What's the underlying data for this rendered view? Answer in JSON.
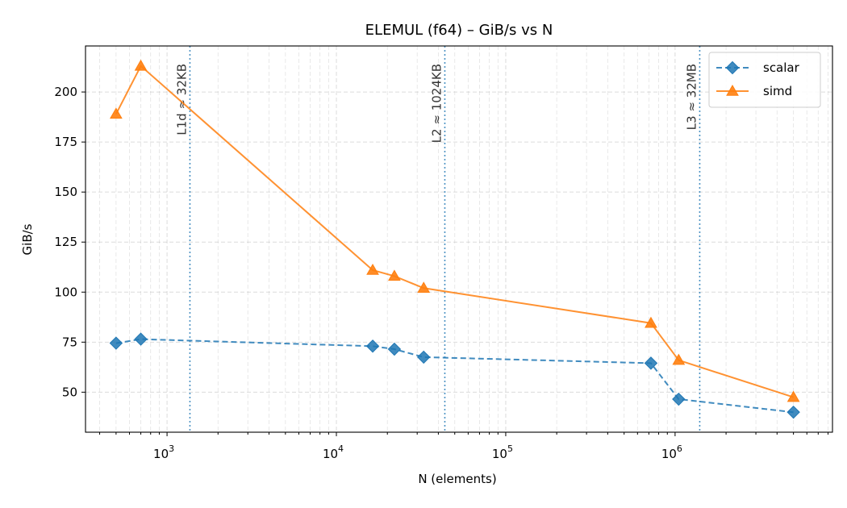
{
  "chart_data": {
    "type": "line",
    "title": "ELEMUL (f64) – GiB/s vs N",
    "xlabel": "N (elements)",
    "ylabel": "GiB/s",
    "xscale": "log",
    "xlim": [
      330,
      8500000
    ],
    "ylim": [
      30,
      223
    ],
    "grid": true,
    "legend_position": "top-right",
    "yticks": [
      50,
      75,
      100,
      125,
      150,
      175,
      200
    ],
    "xticks": [
      {
        "value": 1000,
        "base": "10",
        "exp": "3"
      },
      {
        "value": 10000,
        "base": "10",
        "exp": "4"
      },
      {
        "value": 100000,
        "base": "10",
        "exp": "5"
      },
      {
        "value": 1000000,
        "base": "10",
        "exp": "6"
      }
    ],
    "series": [
      {
        "name": "scalar",
        "color": "#1f77b4",
        "linestyle": "dashed",
        "marker": "diamond",
        "points": [
          [
            500,
            74.5
          ],
          [
            700,
            76.5
          ],
          [
            16384,
            73
          ],
          [
            22000,
            71.5
          ],
          [
            32768,
            67.5
          ],
          [
            720000,
            64.5
          ],
          [
            1050000,
            46.5
          ],
          [
            5000000,
            40
          ]
        ]
      },
      {
        "name": "simd",
        "color": "#ff7f0e",
        "linestyle": "solid",
        "marker": "triangle",
        "points": [
          [
            500,
            189
          ],
          [
            700,
            213
          ],
          [
            16384,
            111
          ],
          [
            22000,
            108
          ],
          [
            32768,
            102
          ],
          [
            720000,
            84.5
          ],
          [
            1050000,
            66
          ],
          [
            5000000,
            47.5
          ]
        ]
      }
    ],
    "vlines": [
      {
        "x": 1365,
        "label": "L1d ≈ 32KB"
      },
      {
        "x": 43690,
        "label": "L2 ≈ 1024KB"
      },
      {
        "x": 1398101,
        "label": "L3 ≈ 32MB"
      }
    ],
    "vline_color": "#1f77b4"
  }
}
